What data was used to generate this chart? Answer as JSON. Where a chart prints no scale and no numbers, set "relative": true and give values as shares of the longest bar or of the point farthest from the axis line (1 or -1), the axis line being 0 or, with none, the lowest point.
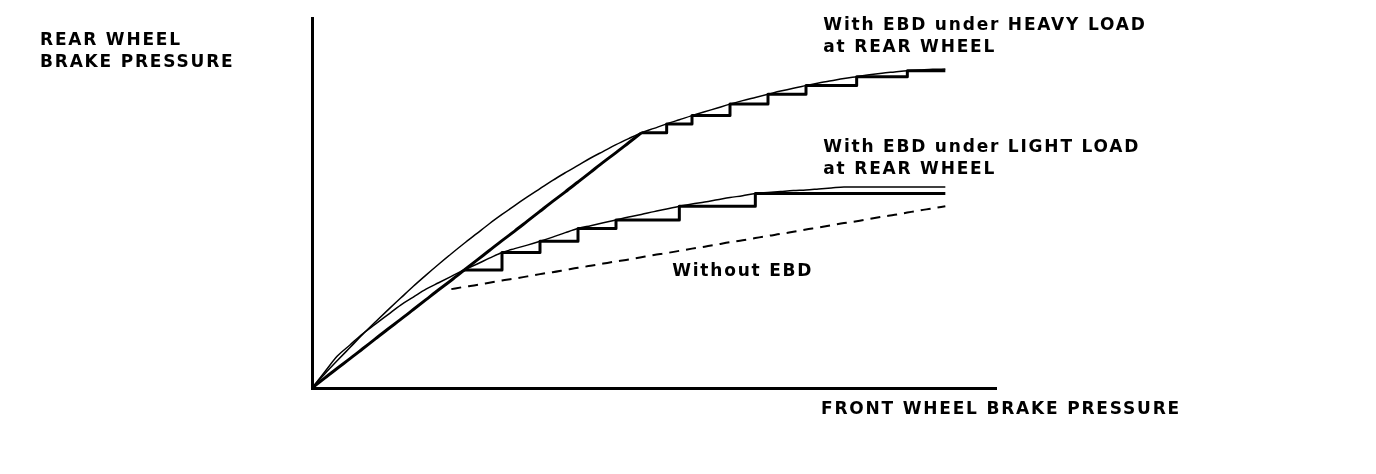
{
  "chart_data": {
    "type": "line",
    "relative": true,
    "tick_labels": false,
    "xlabel": "FRONT WHEEL BRAKE PRESSURE",
    "ylabel": "REAR WHEEL BRAKE PRESSURE",
    "categories": [
      null,
      null,
      null,
      null,
      null,
      null,
      null,
      null,
      null,
      null,
      null,
      null,
      null,
      null,
      null,
      null,
      null,
      null,
      null,
      null,
      null,
      null,
      null,
      null,
      null,
      null,
      null,
      null,
      null,
      null,
      null,
      null,
      null,
      null,
      null,
      null,
      null,
      null,
      null,
      null,
      null,
      null,
      null,
      null,
      null,
      null,
      null,
      null,
      null,
      null,
      null,
      null,
      null,
      null,
      null
    ],
    "series": [
      {
        "color": "#000000",
        "values": [
          0,
          0.044,
          0.086,
          0.127,
          0.168,
          0.207,
          0.245,
          0.282,
          0.319,
          0.354,
          0.388,
          0.421,
          0.453,
          0.484,
          0.515,
          0.544,
          0.572,
          0.599,
          0.625,
          0.651,
          0.675,
          0.698,
          0.721,
          0.742,
          0.763,
          0.782,
          0.8,
          0.814,
          0.828,
          0.841,
          0.854,
          0.866,
          0.878,
          0.89,
          0.901,
          0.911,
          0.921,
          0.931,
          0.94,
          0.948,
          0.956,
          0.963,
          0.97,
          0.976,
          0.982,
          0.987,
          0.991,
          0.995,
          0.997,
          0.999,
          1,
          null,
          null,
          null,
          null
        ]
      },
      {
        "color": "#000000",
        "values": [
          0,
          0.05,
          0.1,
          0.135,
          0.17,
          0.2,
          0.23,
          0.26,
          0.285,
          0.31,
          0.33,
          0.35,
          0.37,
          0.388,
          0.407,
          0.425,
          0.437,
          0.448,
          0.46,
          0.473,
          0.487,
          0.5,
          0.509,
          0.518,
          0.527,
          0.536,
          0.544,
          0.553,
          0.561,
          0.57,
          0.577,
          0.583,
          0.59,
          0.597,
          0.603,
          0.61,
          0.613,
          0.616,
          0.619,
          0.621,
          0.624,
          0.627,
          0.63,
          0.63,
          0.63,
          0.63,
          0.63,
          0.63,
          0.63,
          0.63,
          0.63,
          null,
          null,
          null,
          null
        ]
      },
      {
        "color": "#000000",
        "values": [
          0,
          0.031,
          0.062,
          0.092,
          0.123,
          0.154,
          0.185,
          0.215,
          0.246,
          0.277,
          0.308,
          0.338,
          0.369,
          0.4,
          0.431,
          0.462,
          0.492,
          0.523,
          0.554,
          0.585,
          0.615,
          0.646,
          0.677,
          0.708,
          0.738,
          0.769,
          0.8,
          null,
          null,
          null,
          null,
          null,
          null,
          null,
          null,
          null,
          null,
          null,
          null,
          null,
          null,
          null,
          null,
          null,
          null,
          null,
          null,
          null,
          null,
          null,
          null,
          null,
          null,
          null,
          null
        ]
      },
      {
        "type": "step",
        "name": "With EBD under HEAVY LOAD at REAR WHEEL",
        "color": "#000000",
        "values": [
          null,
          null,
          null,
          null,
          null,
          null,
          null,
          null,
          null,
          null,
          null,
          null,
          null,
          null,
          null,
          null,
          null,
          null,
          null,
          null,
          null,
          null,
          null,
          null,
          null,
          null,
          0.8,
          0.8,
          0.828,
          0.828,
          0.854,
          0.854,
          0.854,
          0.89,
          0.89,
          0.89,
          0.921,
          0.921,
          0.921,
          0.948,
          0.948,
          0.948,
          0.948,
          0.976,
          0.976,
          0.976,
          0.976,
          0.995,
          0.995,
          0.995,
          0.995,
          null,
          null,
          null,
          null
        ]
      },
      {
        "type": "step",
        "name": "With EBD under LIGHT LOAD at REAR WHEEL",
        "color": "#000000",
        "values": [
          null,
          null,
          null,
          null,
          null,
          null,
          null,
          null,
          null,
          null,
          null,
          null,
          0.37,
          0.37,
          0.37,
          0.425,
          0.425,
          0.425,
          0.46,
          0.46,
          0.46,
          0.5,
          0.5,
          0.5,
          0.527,
          0.527,
          0.527,
          0.527,
          0.527,
          0.57,
          0.57,
          0.57,
          0.57,
          0.57,
          0.57,
          0.61,
          0.61,
          0.61,
          0.61,
          0.61,
          0.61,
          0.61,
          0.61,
          0.61,
          0.61,
          0.61,
          0.61,
          0.61,
          0.61,
          0.61,
          0.61,
          null,
          null,
          null,
          null
        ]
      },
      {
        "name": "Without EBD",
        "color": "#000000",
        "line_style": "dashed",
        "values": [
          null,
          null,
          null,
          null,
          null,
          null,
          null,
          null,
          null,
          null,
          null,
          0.31,
          0.317,
          0.323,
          0.33,
          0.337,
          0.343,
          0.35,
          0.357,
          0.363,
          0.37,
          0.377,
          0.383,
          0.39,
          0.397,
          0.403,
          0.41,
          0.417,
          0.423,
          0.43,
          0.437,
          0.443,
          0.45,
          0.457,
          0.463,
          0.47,
          0.477,
          0.483,
          0.49,
          0.497,
          0.503,
          0.51,
          0.517,
          0.523,
          0.53,
          0.537,
          0.543,
          0.55,
          0.557,
          0.563,
          0.57,
          null,
          null,
          null,
          null
        ]
      }
    ]
  }
}
